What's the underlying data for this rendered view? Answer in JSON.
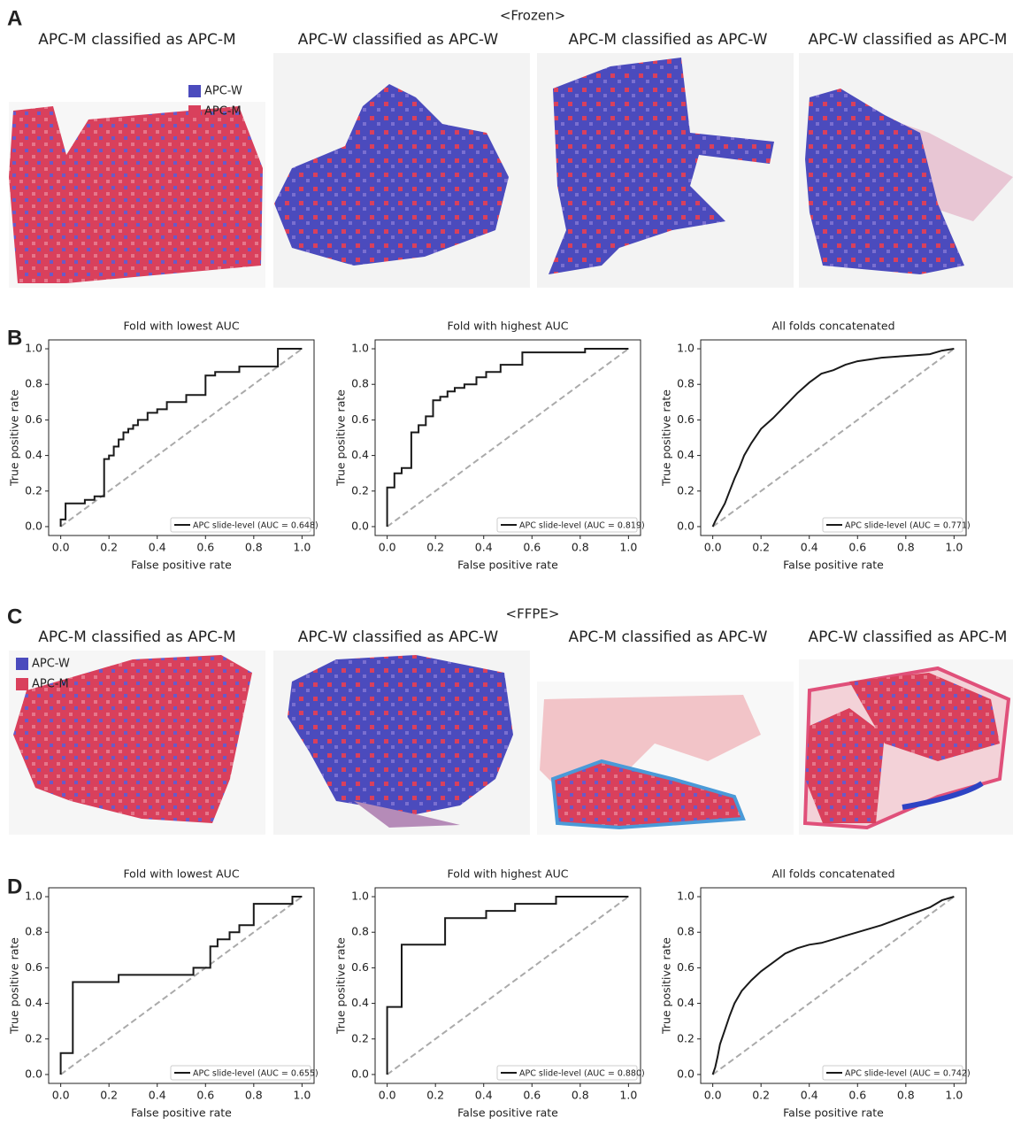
{
  "panel_labels": [
    "A",
    "B",
    "C",
    "D"
  ],
  "sections": [
    {
      "title": "<Frozen>",
      "captions": [
        "APC-M classified as APC-M",
        "APC-W classified as APC-W",
        "APC-M classified as APC-W",
        "APC-W classified as APC-M"
      ],
      "legend": [
        {
          "label": "APC-W",
          "color": "#4b4bbd"
        },
        {
          "label": "APC-M",
          "color": "#d9405c"
        }
      ]
    },
    {
      "title": "<FFPE>",
      "captions": [
        "APC-M classified as APC-M",
        "APC-W classified as APC-W",
        "APC-M classified as APC-W",
        "APC-W classified as APC-M"
      ],
      "legend": [
        {
          "label": "APC-W",
          "color": "#4b4bbd"
        },
        {
          "label": "APC-M",
          "color": "#d9405c"
        }
      ]
    }
  ],
  "chart_data": [
    {
      "type": "line",
      "title": "Fold with lowest AUC",
      "xlabel": "False positive rate",
      "ylabel": "True positive rate",
      "xlim": [
        -0.05,
        1.05
      ],
      "ylim": [
        -0.05,
        1.05
      ],
      "xticks": [
        {
          "value": 0,
          "label": "0.0"
        },
        0.2,
        0.4,
        0.6,
        0.8,
        {
          "value": 1,
          "label": "1.0"
        }
      ],
      "yticks": [
        {
          "value": 0,
          "label": "0.0"
        },
        0.2,
        0.4,
        0.6,
        0.8,
        {
          "value": 1,
          "label": "1.0"
        }
      ],
      "legend_position": "lower right",
      "series": [
        {
          "name": "APC slide-level (AUC = 0.648)",
          "color": "#1a1a1a",
          "x": [
            0,
            0,
            0.02,
            0.02,
            0.1,
            0.1,
            0.14,
            0.14,
            0.18,
            0.18,
            0.2,
            0.2,
            0.22,
            0.22,
            0.24,
            0.24,
            0.26,
            0.26,
            0.28,
            0.28,
            0.3,
            0.3,
            0.32,
            0.32,
            0.36,
            0.36,
            0.4,
            0.4,
            0.44,
            0.44,
            0.52,
            0.52,
            0.6,
            0.6,
            0.64,
            0.64,
            0.74,
            0.74,
            0.9,
            0.9,
            1
          ],
          "values": [
            0,
            0.04,
            0.04,
            0.13,
            0.13,
            0.15,
            0.15,
            0.17,
            0.17,
            0.38,
            0.38,
            0.4,
            0.4,
            0.45,
            0.45,
            0.49,
            0.49,
            0.53,
            0.53,
            0.55,
            0.55,
            0.57,
            0.57,
            0.6,
            0.6,
            0.64,
            0.64,
            0.66,
            0.66,
            0.7,
            0.7,
            0.74,
            0.74,
            0.85,
            0.85,
            0.87,
            0.87,
            0.9,
            0.9,
            1,
            1
          ]
        },
        {
          "color": "#aaaaaa",
          "dash": true,
          "x": [
            0,
            1
          ],
          "values": [
            0,
            1
          ]
        }
      ]
    },
    {
      "type": "line",
      "title": "Fold with highest AUC",
      "xlabel": "False positive rate",
      "ylabel": "True positive rate",
      "xlim": [
        -0.05,
        1.05
      ],
      "ylim": [
        -0.05,
        1.05
      ],
      "xticks": [
        {
          "value": 0,
          "label": "0.0"
        },
        0.2,
        0.4,
        0.6,
        0.8,
        {
          "value": 1,
          "label": "1.0"
        }
      ],
      "yticks": [
        {
          "value": 0,
          "label": "0.0"
        },
        0.2,
        0.4,
        0.6,
        0.8,
        {
          "value": 1,
          "label": "1.0"
        }
      ],
      "legend_position": "lower right",
      "series": [
        {
          "name": "APC slide-level (AUC = 0.819)",
          "color": "#1a1a1a",
          "x": [
            0,
            0,
            0.03,
            0.03,
            0.06,
            0.06,
            0.1,
            0.1,
            0.13,
            0.13,
            0.16,
            0.16,
            0.19,
            0.19,
            0.22,
            0.22,
            0.25,
            0.25,
            0.28,
            0.28,
            0.32,
            0.32,
            0.37,
            0.37,
            0.41,
            0.41,
            0.47,
            0.47,
            0.56,
            0.56,
            0.82,
            0.82,
            1
          ],
          "values": [
            0,
            0.22,
            0.22,
            0.3,
            0.3,
            0.33,
            0.33,
            0.53,
            0.53,
            0.57,
            0.57,
            0.62,
            0.62,
            0.71,
            0.71,
            0.73,
            0.73,
            0.76,
            0.76,
            0.78,
            0.78,
            0.8,
            0.8,
            0.84,
            0.84,
            0.87,
            0.87,
            0.91,
            0.91,
            0.98,
            0.98,
            1,
            1
          ]
        },
        {
          "color": "#aaaaaa",
          "dash": true,
          "x": [
            0,
            1
          ],
          "values": [
            0,
            1
          ]
        }
      ]
    },
    {
      "type": "line",
      "title": "All folds concatenated",
      "xlabel": "False positive rate",
      "ylabel": "True positive rate",
      "xlim": [
        -0.05,
        1.05
      ],
      "ylim": [
        -0.05,
        1.05
      ],
      "xticks": [
        {
          "value": 0,
          "label": "0.0"
        },
        0.2,
        0.4,
        0.6,
        0.8,
        {
          "value": 1,
          "label": "1.0"
        }
      ],
      "yticks": [
        {
          "value": 0,
          "label": "0.0"
        },
        0.2,
        0.4,
        0.6,
        0.8,
        {
          "value": 1,
          "label": "1.0"
        }
      ],
      "legend_position": "lower right",
      "series": [
        {
          "name": "APC slide-level (AUC = 0.771)",
          "color": "#1a1a1a",
          "x": [
            0,
            0.01,
            0.03,
            0.05,
            0.07,
            0.09,
            0.11,
            0.13,
            0.16,
            0.2,
            0.25,
            0.3,
            0.35,
            0.4,
            0.45,
            0.5,
            0.55,
            0.6,
            0.7,
            0.8,
            0.9,
            0.95,
            1
          ],
          "values": [
            0,
            0.03,
            0.08,
            0.13,
            0.2,
            0.27,
            0.33,
            0.4,
            0.47,
            0.55,
            0.61,
            0.68,
            0.75,
            0.81,
            0.86,
            0.88,
            0.91,
            0.93,
            0.95,
            0.96,
            0.97,
            0.99,
            1
          ]
        },
        {
          "color": "#aaaaaa",
          "dash": true,
          "x": [
            0,
            1
          ],
          "values": [
            0,
            1
          ]
        }
      ]
    },
    {
      "type": "line",
      "title": "Fold with lowest AUC",
      "xlabel": "False positive rate",
      "ylabel": "True positive rate",
      "xlim": [
        -0.05,
        1.05
      ],
      "ylim": [
        -0.05,
        1.05
      ],
      "xticks": [
        {
          "value": 0,
          "label": "0.0"
        },
        0.2,
        0.4,
        0.6,
        0.8,
        {
          "value": 1,
          "label": "1.0"
        }
      ],
      "yticks": [
        {
          "value": 0,
          "label": "0.0"
        },
        0.2,
        0.4,
        0.6,
        0.8,
        {
          "value": 1,
          "label": "1.0"
        }
      ],
      "legend_position": "lower right",
      "series": [
        {
          "name": "APC slide-level (AUC = 0.655)",
          "color": "#1a1a1a",
          "x": [
            0,
            0,
            0.05,
            0.05,
            0.24,
            0.24,
            0.55,
            0.55,
            0.62,
            0.62,
            0.65,
            0.65,
            0.7,
            0.7,
            0.74,
            0.74,
            0.8,
            0.8,
            0.96,
            0.96,
            1
          ],
          "values": [
            0,
            0.12,
            0.12,
            0.52,
            0.52,
            0.56,
            0.56,
            0.6,
            0.6,
            0.72,
            0.72,
            0.76,
            0.76,
            0.8,
            0.8,
            0.84,
            0.84,
            0.96,
            0.96,
            1,
            1
          ]
        },
        {
          "color": "#aaaaaa",
          "dash": true,
          "x": [
            0,
            1
          ],
          "values": [
            0,
            1
          ]
        }
      ]
    },
    {
      "type": "line",
      "title": "Fold with highest AUC",
      "xlabel": "False positive rate",
      "ylabel": "True positive rate",
      "xlim": [
        -0.05,
        1.05
      ],
      "ylim": [
        -0.05,
        1.05
      ],
      "xticks": [
        {
          "value": 0,
          "label": "0.0"
        },
        0.2,
        0.4,
        0.6,
        0.8,
        {
          "value": 1,
          "label": "1.0"
        }
      ],
      "yticks": [
        {
          "value": 0,
          "label": "0.0"
        },
        0.2,
        0.4,
        0.6,
        0.8,
        {
          "value": 1,
          "label": "1.0"
        }
      ],
      "legend_position": "lower right",
      "series": [
        {
          "name": "APC slide-level (AUC = 0.880)",
          "color": "#1a1a1a",
          "x": [
            0,
            0,
            0.06,
            0.06,
            0.24,
            0.24,
            0.41,
            0.41,
            0.53,
            0.53,
            0.7,
            0.7,
            1
          ],
          "values": [
            0,
            0.38,
            0.38,
            0.73,
            0.73,
            0.88,
            0.88,
            0.92,
            0.92,
            0.96,
            0.96,
            1,
            1
          ]
        },
        {
          "color": "#aaaaaa",
          "dash": true,
          "x": [
            0,
            1
          ],
          "values": [
            0,
            1
          ]
        }
      ]
    },
    {
      "type": "line",
      "title": "All folds concatenated",
      "xlabel": "False positive rate",
      "ylabel": "True positive rate",
      "xlim": [
        -0.05,
        1.05
      ],
      "ylim": [
        -0.05,
        1.05
      ],
      "xticks": [
        {
          "value": 0,
          "label": "0.0"
        },
        0.2,
        0.4,
        0.6,
        0.8,
        {
          "value": 1,
          "label": "1.0"
        }
      ],
      "yticks": [
        {
          "value": 0,
          "label": "0.0"
        },
        0.2,
        0.4,
        0.6,
        0.8,
        {
          "value": 1,
          "label": "1.0"
        }
      ],
      "legend_position": "lower right",
      "series": [
        {
          "name": "APC slide-level (AUC = 0.742)",
          "color": "#1a1a1a",
          "x": [
            0,
            0.01,
            0.02,
            0.03,
            0.05,
            0.07,
            0.09,
            0.12,
            0.16,
            0.2,
            0.25,
            0.3,
            0.35,
            0.4,
            0.45,
            0.5,
            0.55,
            0.6,
            0.7,
            0.8,
            0.9,
            0.95,
            1
          ],
          "values": [
            0,
            0.04,
            0.1,
            0.17,
            0.25,
            0.33,
            0.4,
            0.47,
            0.53,
            0.58,
            0.63,
            0.68,
            0.71,
            0.73,
            0.74,
            0.76,
            0.78,
            0.8,
            0.84,
            0.89,
            0.94,
            0.98,
            1
          ]
        },
        {
          "color": "#aaaaaa",
          "dash": true,
          "x": [
            0,
            1
          ],
          "values": [
            0,
            1
          ]
        }
      ]
    }
  ]
}
